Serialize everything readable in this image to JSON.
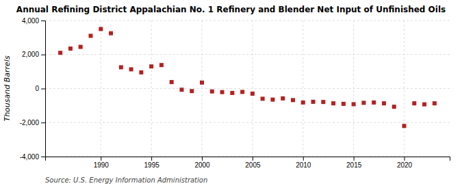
{
  "chart_data": {
    "type": "scatter",
    "title": "Annual Refining District Appalachian No. 1 Refinery and Blender Net Input of Unfinished Oils",
    "ylabel": "Thousand Barrels",
    "source": "Source: U.S. Energy Information Administration",
    "x": [
      1986,
      1987,
      1988,
      1989,
      1990,
      1991,
      1992,
      1993,
      1994,
      1995,
      1996,
      1997,
      1998,
      1999,
      2000,
      2001,
      2002,
      2003,
      2004,
      2005,
      2006,
      2007,
      2008,
      2009,
      2010,
      2011,
      2012,
      2013,
      2014,
      2015,
      2016,
      2017,
      2018,
      2019,
      2020,
      2021,
      2022,
      2023
    ],
    "values": [
      2100,
      2350,
      2450,
      3100,
      3500,
      3250,
      1250,
      1130,
      950,
      1300,
      1380,
      380,
      -70,
      -150,
      350,
      -170,
      -210,
      -260,
      -200,
      -300,
      -600,
      -650,
      -580,
      -680,
      -820,
      -780,
      -790,
      -870,
      -900,
      -920,
      -840,
      -820,
      -870,
      -1070,
      -2200,
      -870,
      -930,
      -870
    ],
    "color": "#b22222",
    "marker": "square",
    "xlim": [
      1984.5,
      2024.5
    ],
    "xticks": [
      1990,
      1995,
      2000,
      2005,
      2010,
      2015,
      2020
    ],
    "ylim": [
      -4000,
      4000
    ],
    "yticks": [
      {
        "value": -4000,
        "label": "-4,000"
      },
      {
        "value": -2000,
        "label": "-2,000"
      },
      0,
      {
        "value": 2000,
        "label": "2,000"
      },
      {
        "value": 4000,
        "label": "4,000"
      }
    ],
    "grid": true
  }
}
